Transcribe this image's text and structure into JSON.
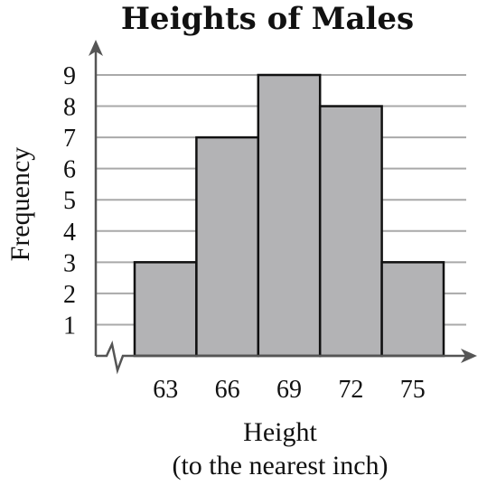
{
  "chart_data": {
    "type": "bar",
    "title": "Heights of Males",
    "xlabel": "Height",
    "xlabel_sub": "(to the nearest inch)",
    "ylabel": "Frequency",
    "categories": [
      "63",
      "66",
      "69",
      "72",
      "75"
    ],
    "values": [
      3,
      7,
      9,
      8,
      3
    ],
    "ylim": [
      0,
      9
    ],
    "yticks": [
      "1",
      "2",
      "3",
      "4",
      "5",
      "6",
      "7",
      "8",
      "9"
    ],
    "grid": true,
    "axis_break": true,
    "bar_color": "#b3b3b5",
    "grid_color": "#a9a9a9"
  }
}
